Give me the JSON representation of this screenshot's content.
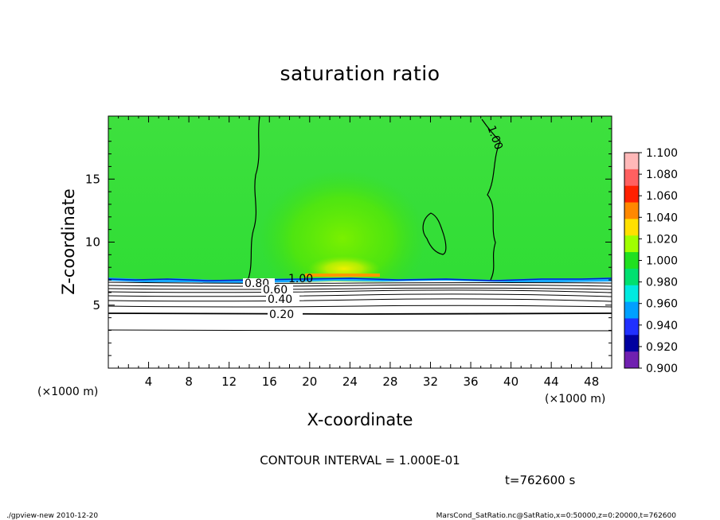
{
  "chart_data": {
    "type": "heatmap",
    "title": "saturation ratio",
    "xlabel": "X-coordinate",
    "ylabel": "Z-coordinate",
    "x_unit": "(×1000 m)",
    "z_unit": "(×1000 m)",
    "xlim": [
      0,
      50
    ],
    "ylim": [
      0,
      20
    ],
    "x_ticks": [
      4,
      8,
      12,
      16,
      20,
      24,
      28,
      32,
      36,
      40,
      44,
      48
    ],
    "y_ticks": [
      5,
      10,
      15
    ],
    "colorbar": {
      "min": 0.9,
      "max": 1.1,
      "labels": [
        "1.100",
        "1.080",
        "1.060",
        "1.040",
        "1.020",
        "1.000",
        "0.980",
        "0.960",
        "0.940",
        "0.920",
        "0.900"
      ],
      "colors": [
        "#ffb8b8",
        "#ff6060",
        "#ff2000",
        "#ff8800",
        "#ffe000",
        "#a0ff00",
        "#20e020",
        "#00e070",
        "#00eae0",
        "#00a0ff",
        "#2030ff",
        "#0000a0",
        "#7020b0"
      ]
    },
    "contour_interval": "CONTOUR INTERVAL = 1.000E-01",
    "contour_labels": [
      "1.00",
      "1.00",
      "0.80",
      "0.60",
      "0.40",
      "0.20"
    ],
    "time_label": "t=762600  s"
  },
  "footer": {
    "left": "./gpview-new   2010-12-20",
    "right": "MarsCond_SatRatio.nc@SatRatio,x=0:50000,z=0:20000,t=762600"
  }
}
